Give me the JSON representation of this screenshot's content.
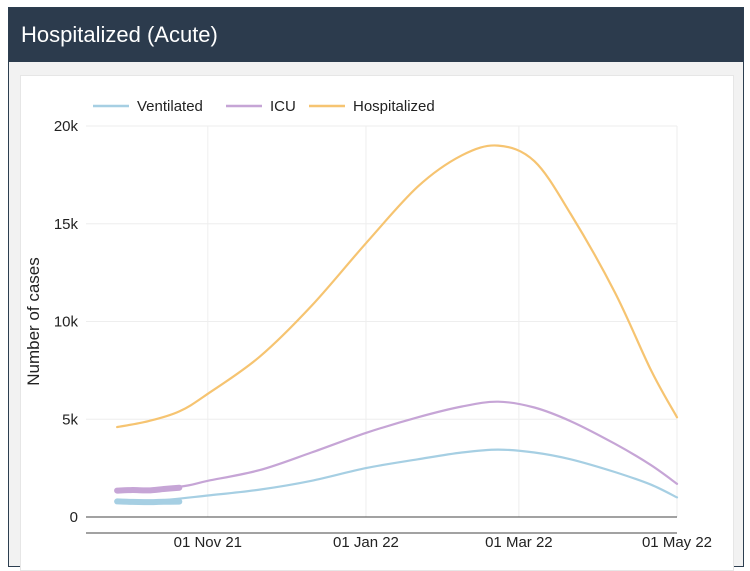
{
  "header": {
    "title": "Hospitalized (Acute)"
  },
  "chart_data": {
    "type": "line",
    "title": "",
    "xlabel": "",
    "ylabel": "Number of cases",
    "x_ticks": [
      "01 Nov 21",
      "01 Jan 22",
      "01 Mar 22",
      "01 May 22"
    ],
    "x_tick_dates": [
      "2021-11-01",
      "2022-01-01",
      "2022-03-01",
      "2022-05-01"
    ],
    "y_ticks": [
      {
        "value": 0,
        "label": "0"
      },
      {
        "value": 5000,
        "label": "5k"
      },
      {
        "value": 10000,
        "label": "10k"
      },
      {
        "value": 15000,
        "label": "15k"
      },
      {
        "value": 20000,
        "label": "20k"
      }
    ],
    "xlim": [
      "2021-09-15",
      "2022-05-01"
    ],
    "ylim": [
      0,
      20000
    ],
    "grid": true,
    "legend_position": "top-left",
    "series": [
      {
        "name": "Ventilated",
        "color": "#a6cfe3",
        "observed": [
          {
            "x": "2021-09-27",
            "y": 800
          },
          {
            "x": "2021-10-03",
            "y": 770
          },
          {
            "x": "2021-10-09",
            "y": 760
          },
          {
            "x": "2021-10-15",
            "y": 780
          },
          {
            "x": "2021-10-21",
            "y": 790
          }
        ],
        "points": [
          {
            "x": "2021-09-27",
            "y": 800
          },
          {
            "x": "2021-10-11",
            "y": 820
          },
          {
            "x": "2021-11-01",
            "y": 1100
          },
          {
            "x": "2021-11-21",
            "y": 1400
          },
          {
            "x": "2021-12-11",
            "y": 1850
          },
          {
            "x": "2022-01-01",
            "y": 2500
          },
          {
            "x": "2022-01-21",
            "y": 2950
          },
          {
            "x": "2022-02-07",
            "y": 3300
          },
          {
            "x": "2022-02-21",
            "y": 3450
          },
          {
            "x": "2022-03-07",
            "y": 3300
          },
          {
            "x": "2022-03-21",
            "y": 2950
          },
          {
            "x": "2022-04-07",
            "y": 2300
          },
          {
            "x": "2022-04-21",
            "y": 1650
          },
          {
            "x": "2022-05-01",
            "y": 1000
          }
        ]
      },
      {
        "name": "ICU",
        "color": "#c6a5d6",
        "observed": [
          {
            "x": "2021-09-27",
            "y": 1350
          },
          {
            "x": "2021-10-03",
            "y": 1380
          },
          {
            "x": "2021-10-09",
            "y": 1360
          },
          {
            "x": "2021-10-15",
            "y": 1430
          },
          {
            "x": "2021-10-21",
            "y": 1500
          }
        ],
        "points": [
          {
            "x": "2021-09-27",
            "y": 1350
          },
          {
            "x": "2021-10-21",
            "y": 1550
          },
          {
            "x": "2021-11-01",
            "y": 1850
          },
          {
            "x": "2021-11-21",
            "y": 2400
          },
          {
            "x": "2021-12-11",
            "y": 3300
          },
          {
            "x": "2022-01-01",
            "y": 4300
          },
          {
            "x": "2022-01-21",
            "y": 5100
          },
          {
            "x": "2022-02-07",
            "y": 5650
          },
          {
            "x": "2022-02-21",
            "y": 5900
          },
          {
            "x": "2022-03-07",
            "y": 5600
          },
          {
            "x": "2022-03-21",
            "y": 4900
          },
          {
            "x": "2022-04-07",
            "y": 3750
          },
          {
            "x": "2022-04-21",
            "y": 2650
          },
          {
            "x": "2022-05-01",
            "y": 1700
          }
        ]
      },
      {
        "name": "Hospitalized",
        "color": "#f6c471",
        "observed": [],
        "points": [
          {
            "x": "2021-09-27",
            "y": 4600
          },
          {
            "x": "2021-10-09",
            "y": 4900
          },
          {
            "x": "2021-10-21",
            "y": 5400
          },
          {
            "x": "2021-11-01",
            "y": 6300
          },
          {
            "x": "2021-11-21",
            "y": 8200
          },
          {
            "x": "2021-12-11",
            "y": 10800
          },
          {
            "x": "2022-01-01",
            "y": 14000
          },
          {
            "x": "2022-01-21",
            "y": 16900
          },
          {
            "x": "2022-02-07",
            "y": 18500
          },
          {
            "x": "2022-02-21",
            "y": 19000
          },
          {
            "x": "2022-03-07",
            "y": 18200
          },
          {
            "x": "2022-03-21",
            "y": 15500
          },
          {
            "x": "2022-04-07",
            "y": 11500
          },
          {
            "x": "2022-04-21",
            "y": 7500
          },
          {
            "x": "2022-05-01",
            "y": 5100
          }
        ]
      }
    ]
  }
}
